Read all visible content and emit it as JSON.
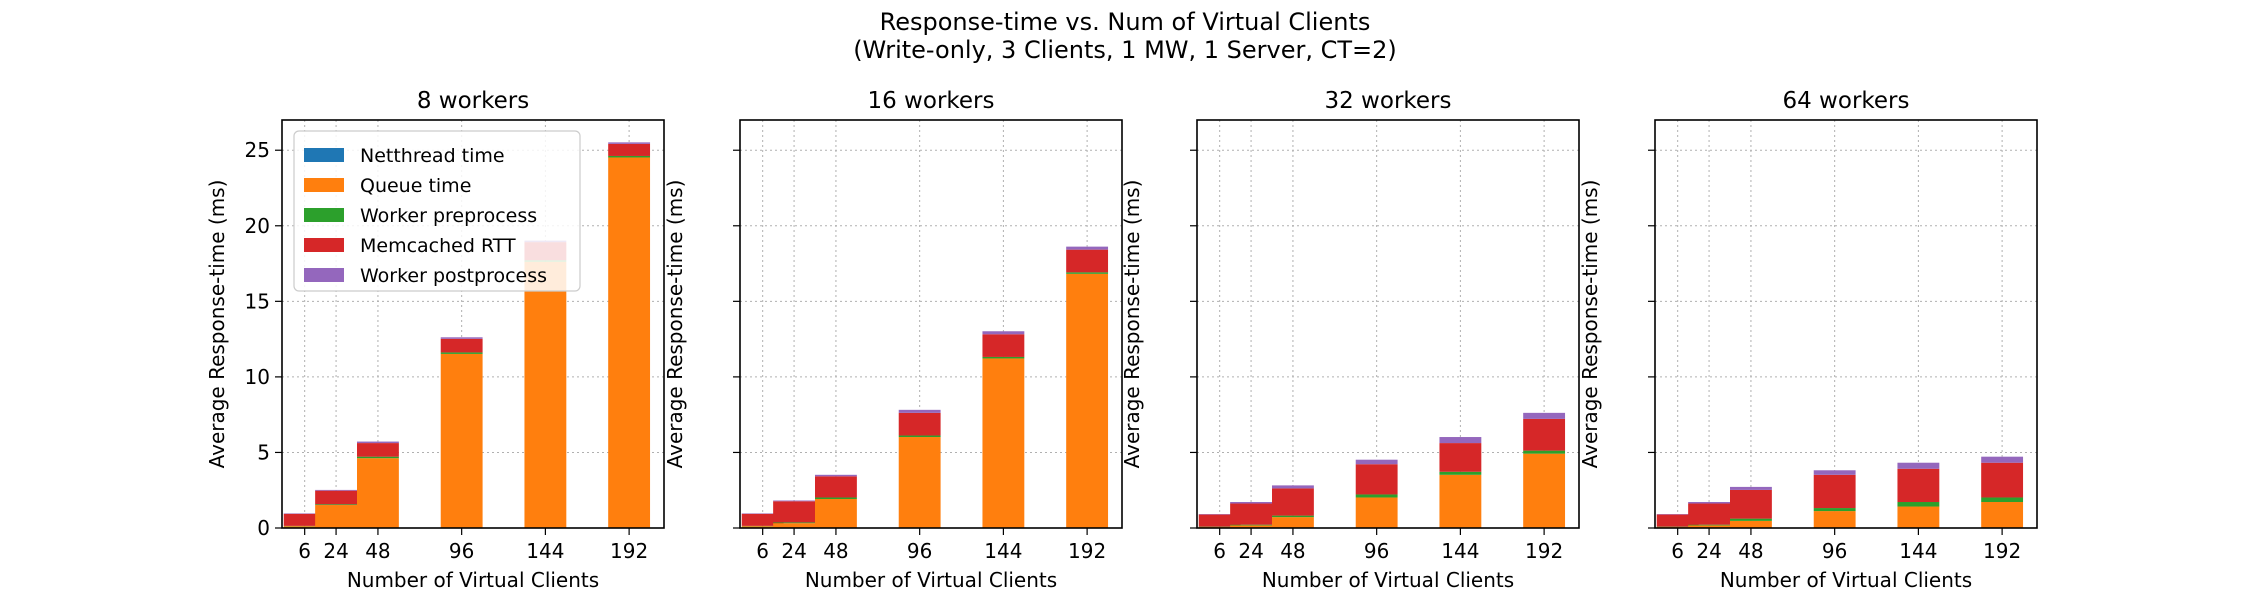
{
  "figure": {
    "title_line1": "Response-time vs. Num of Virtual Clients",
    "title_line2": "(Write-only, 3 Clients, 1 MW, 1 Server, CT=2)"
  },
  "legend": {
    "placement": "upper-left (first panel only)",
    "entries": [
      {
        "name": "Netthread time",
        "color": "#1f77b4"
      },
      {
        "name": "Queue time",
        "color": "#ff7f0e"
      },
      {
        "name": "Worker preprocess",
        "color": "#2ca02c"
      },
      {
        "name": "Memcached RTT",
        "color": "#d62728"
      },
      {
        "name": "Worker postprocess",
        "color": "#9467bd"
      }
    ]
  },
  "chart_data": [
    {
      "type": "bar",
      "stacked": true,
      "title": "8 workers",
      "xlabel": "Number of Virtual Clients",
      "ylabel": "Average Response-time (ms)",
      "ylim": [
        0,
        27
      ],
      "yticks": [
        0,
        5,
        10,
        15,
        20,
        25
      ],
      "grid": true,
      "categories": [
        6,
        24,
        48,
        96,
        144,
        192
      ],
      "series": [
        {
          "name": "Netthread time",
          "values": [
            0.02,
            0.02,
            0.02,
            0.02,
            0.02,
            0.02
          ]
        },
        {
          "name": "Queue time",
          "values": [
            0.1,
            1.5,
            4.6,
            11.5,
            17.6,
            24.5
          ]
        },
        {
          "name": "Worker preprocess",
          "values": [
            0.02,
            0.05,
            0.1,
            0.1,
            0.1,
            0.1
          ]
        },
        {
          "name": "Memcached RTT",
          "values": [
            0.8,
            0.9,
            0.9,
            0.9,
            1.2,
            0.8
          ]
        },
        {
          "name": "Worker postprocess",
          "values": [
            0.03,
            0.05,
            0.1,
            0.1,
            0.1,
            0.1
          ]
        }
      ]
    },
    {
      "type": "bar",
      "stacked": true,
      "title": "16 workers",
      "xlabel": "Number of Virtual Clients",
      "ylabel": "Average Response-time (ms)",
      "ylim": [
        0,
        27
      ],
      "yticks": [
        0,
        5,
        10,
        15,
        20,
        25
      ],
      "grid": true,
      "categories": [
        6,
        24,
        48,
        96,
        144,
        192
      ],
      "series": [
        {
          "name": "Netthread time",
          "values": [
            0.02,
            0.02,
            0.02,
            0.02,
            0.02,
            0.02
          ]
        },
        {
          "name": "Queue time",
          "values": [
            0.1,
            0.3,
            1.9,
            6.0,
            11.2,
            16.8
          ]
        },
        {
          "name": "Worker preprocess",
          "values": [
            0.02,
            0.05,
            0.1,
            0.1,
            0.1,
            0.1
          ]
        },
        {
          "name": "Memcached RTT",
          "values": [
            0.8,
            1.4,
            1.4,
            1.5,
            1.5,
            1.5
          ]
        },
        {
          "name": "Worker postprocess",
          "values": [
            0.03,
            0.05,
            0.1,
            0.2,
            0.2,
            0.2
          ]
        }
      ]
    },
    {
      "type": "bar",
      "stacked": true,
      "title": "32 workers",
      "xlabel": "Number of Virtual Clients",
      "ylabel": "Average Response-time (ms)",
      "ylim": [
        0,
        27
      ],
      "yticks": [
        0,
        5,
        10,
        15,
        20,
        25
      ],
      "grid": true,
      "categories": [
        6,
        24,
        48,
        96,
        144,
        192
      ],
      "series": [
        {
          "name": "Netthread time",
          "values": [
            0.02,
            0.02,
            0.02,
            0.02,
            0.02,
            0.02
          ]
        },
        {
          "name": "Queue time",
          "values": [
            0.05,
            0.15,
            0.7,
            2.0,
            3.5,
            4.9
          ]
        },
        {
          "name": "Worker preprocess",
          "values": [
            0.02,
            0.05,
            0.1,
            0.2,
            0.2,
            0.2
          ]
        },
        {
          "name": "Memcached RTT",
          "values": [
            0.8,
            1.4,
            1.8,
            2.0,
            1.9,
            2.1
          ]
        },
        {
          "name": "Worker postprocess",
          "values": [
            0.03,
            0.1,
            0.2,
            0.3,
            0.4,
            0.4
          ]
        }
      ]
    },
    {
      "type": "bar",
      "stacked": true,
      "title": "64 workers",
      "xlabel": "Number of Virtual Clients",
      "ylabel": "Average Response-time (ms)",
      "ylim": [
        0,
        27
      ],
      "yticks": [
        0,
        5,
        10,
        15,
        20,
        25
      ],
      "grid": true,
      "categories": [
        6,
        24,
        48,
        96,
        144,
        192
      ],
      "series": [
        {
          "name": "Netthread time",
          "values": [
            0.02,
            0.02,
            0.02,
            0.02,
            0.02,
            0.02
          ]
        },
        {
          "name": "Queue time",
          "values": [
            0.05,
            0.15,
            0.45,
            1.1,
            1.4,
            1.7
          ]
        },
        {
          "name": "Worker preprocess",
          "values": [
            0.02,
            0.05,
            0.15,
            0.2,
            0.3,
            0.3
          ]
        },
        {
          "name": "Memcached RTT",
          "values": [
            0.8,
            1.4,
            1.9,
            2.2,
            2.2,
            2.3
          ]
        },
        {
          "name": "Worker postprocess",
          "values": [
            0.03,
            0.1,
            0.2,
            0.3,
            0.4,
            0.4
          ]
        }
      ]
    }
  ]
}
